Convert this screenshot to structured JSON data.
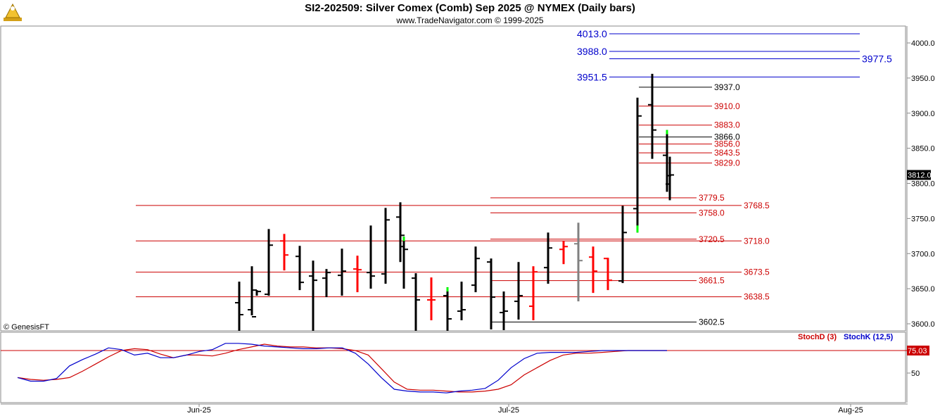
{
  "header": {
    "title": "SI2-202509:  Silver Comex (Comb) Sep 2025 @ NYMEX  (Daily bars)",
    "subtitle": "www.TradeNavigator.com © 1999-2025"
  },
  "copyright": "© GenesisFT",
  "colors": {
    "bar_up": "#000000",
    "bar_down": "#ff0000",
    "bar_green": "#00ff00",
    "bar_gray": "#808080",
    "blue_level": "#0000cc",
    "red_level": "#cc0000",
    "black_level": "#000000",
    "stochD": "#cc0000",
    "stochK": "#0000cc",
    "price_tag_bg": "#000000"
  },
  "chart_data": [
    {
      "type": "ohlc",
      "title": "SI2-202509:  Silver Comex (Comb) Sep 2025 @ NYMEX  (Daily bars)",
      "ylim": [
        3580,
        4030
      ],
      "y_ticks": [
        3600.0,
        3650.0,
        3700.0,
        3750.0,
        3800.0,
        3850.0,
        3900.0,
        3950.0,
        4000.0
      ],
      "y_tick_labels": [
        "3600.0",
        "3650.0",
        "3700.0",
        "3750.0",
        "3800.0",
        "3850.0",
        "3900.0",
        "3950.0",
        "4000.0"
      ],
      "x_labels": [
        "Jun-25",
        "Jul-25",
        "Aug-25"
      ],
      "last_price": "3812.0",
      "bars": [
        {
          "h": 3660,
          "l": 3590,
          "o": 3630,
          "c": 3613,
          "color": "black"
        },
        {
          "h": 3682,
          "l": 3612,
          "o": 3620,
          "c": 3610,
          "color": "black"
        },
        {
          "h": 3648,
          "l": 3640,
          "o": 3648,
          "c": 3646,
          "color": "black"
        },
        {
          "h": 3735,
          "l": 3640,
          "o": 3642,
          "c": 3712,
          "color": "black"
        },
        {
          "h": 3728,
          "l": 3676,
          "o": 3718,
          "c": 3698,
          "color": "red"
        },
        {
          "h": 3711,
          "l": 3648,
          "o": 3696,
          "c": 3659,
          "color": "black"
        },
        {
          "h": 3690,
          "l": 3590,
          "o": 3668,
          "c": 3662,
          "color": "black"
        },
        {
          "h": 3678,
          "l": 3638,
          "o": 3665,
          "c": 3673,
          "color": "black"
        },
        {
          "h": 3707,
          "l": 3640,
          "o": 3669,
          "c": 3675,
          "color": "black"
        },
        {
          "h": 3697,
          "l": 3645,
          "o": 3678,
          "c": 3677,
          "color": "red"
        },
        {
          "h": 3740,
          "l": 3650,
          "o": 3673,
          "c": 3668,
          "color": "black"
        },
        {
          "h": 3765,
          "l": 3657,
          "o": 3671,
          "c": 3748,
          "color": "black"
        },
        {
          "h": 3773,
          "l": 3688,
          "o": 3752,
          "c": 3726,
          "color": "black"
        },
        {
          "h": 3724,
          "l": 3650,
          "o": 3710,
          "c": 3706,
          "color": "black",
          "top_color": "green"
        },
        {
          "h": 3672,
          "l": 3590,
          "o": 3665,
          "c": 3634,
          "color": "black"
        },
        {
          "h": 3666,
          "l": 3605,
          "o": 3634,
          "c": 3634,
          "color": "red"
        },
        {
          "h": 3652,
          "l": 3590,
          "o": 3640,
          "c": 3607,
          "color": "black",
          "top_color": "green"
        },
        {
          "h": 3660,
          "l": 3605,
          "o": 3618,
          "c": 3620,
          "color": "black"
        },
        {
          "h": 3710,
          "l": 3645,
          "o": 3655,
          "c": 3693,
          "color": "black"
        },
        {
          "h": 3693,
          "l": 3592,
          "o": 3688,
          "c": 3638,
          "color": "black"
        },
        {
          "h": 3646,
          "l": 3591,
          "o": 3616,
          "c": 3618,
          "color": "black"
        },
        {
          "h": 3688,
          "l": 3606,
          "o": 3632,
          "c": 3640,
          "color": "black"
        },
        {
          "h": 3682,
          "l": 3605,
          "o": 3625,
          "c": 3674,
          "color": "red"
        },
        {
          "h": 3730,
          "l": 3657,
          "o": 3680,
          "c": 3708,
          "color": "black"
        },
        {
          "h": 3718,
          "l": 3685,
          "o": 3706,
          "c": 3710,
          "color": "red"
        },
        {
          "h": 3744,
          "l": 3632,
          "o": 3714,
          "c": 3690,
          "color": "gray"
        },
        {
          "h": 3710,
          "l": 3644,
          "o": 3695,
          "c": 3675,
          "color": "red"
        },
        {
          "h": 3694,
          "l": 3648,
          "o": 3693,
          "c": 3662,
          "color": "red"
        },
        {
          "h": 3768,
          "l": 3658,
          "o": 3661,
          "c": 3730,
          "color": "black"
        },
        {
          "h": 3922,
          "l": 3730,
          "o": 3764,
          "c": 3896,
          "color": "black",
          "bottom_color": "green"
        },
        {
          "h": 3956,
          "l": 3835,
          "o": 3912,
          "c": 3876,
          "color": "black"
        },
        {
          "h": 3876,
          "l": 3788,
          "o": 3840,
          "c": 3811,
          "color": "black",
          "top_color": "green"
        },
        {
          "h": 3838,
          "l": 3776,
          "o": 3799,
          "c": 3812,
          "color": "black"
        }
      ]
    },
    {
      "type": "hline_levels",
      "levels": [
        {
          "value": 4013.0,
          "label": "4013.0",
          "color": "blue"
        },
        {
          "value": 3988.0,
          "label": "3988.0",
          "color": "blue"
        },
        {
          "value": 3977.5,
          "label": "3977.5",
          "color": "blue"
        },
        {
          "value": 3951.5,
          "label": "3951.5",
          "color": "blue"
        },
        {
          "value": 3937.0,
          "label": "3937.0",
          "color": "black"
        },
        {
          "value": 3910.0,
          "label": "3910.0",
          "color": "red"
        },
        {
          "value": 3883.0,
          "label": "3883.0",
          "color": "red"
        },
        {
          "value": 3866.0,
          "label": "3866.0",
          "color": "black"
        },
        {
          "value": 3856.0,
          "label": "3856.0",
          "color": "red"
        },
        {
          "value": 3843.5,
          "label": "3843.5",
          "color": "red"
        },
        {
          "value": 3829.0,
          "label": "3829.0",
          "color": "red"
        },
        {
          "value": 3779.5,
          "label": "3779.5",
          "color": "red"
        },
        {
          "value": 3768.5,
          "label": "3768.5",
          "color": "red"
        },
        {
          "value": 3758.0,
          "label": "3758.0",
          "color": "red"
        },
        {
          "value": 3720.5,
          "label": "3720.5",
          "color": "red"
        },
        {
          "value": 3718.0,
          "label": "3718.0",
          "color": "red"
        },
        {
          "value": 3673.5,
          "label": "3673.5",
          "color": "red"
        },
        {
          "value": 3661.5,
          "label": "3661.5",
          "color": "red"
        },
        {
          "value": 3638.5,
          "label": "3638.5",
          "color": "red"
        },
        {
          "value": 3602.5,
          "label": "3602.5",
          "color": "black"
        }
      ]
    },
    {
      "type": "line",
      "title": "",
      "series": [
        {
          "name": "StochD (3)",
          "values": [
            45,
            43,
            42,
            43,
            45,
            52,
            60,
            68,
            75,
            77,
            76,
            71,
            67,
            70,
            70,
            69,
            72,
            76,
            79,
            82,
            80,
            79,
            79,
            78,
            78,
            77,
            75,
            70,
            55,
            40,
            32,
            31,
            31,
            30,
            29,
            29,
            30,
            32,
            37,
            48,
            56,
            64,
            70,
            72,
            72,
            73,
            74,
            75,
            75,
            75,
            75
          ]
        },
        {
          "name": "StochK (12,5)",
          "values": [
            45,
            41,
            41,
            44,
            58,
            65,
            71,
            78,
            76,
            70,
            72,
            67,
            67,
            70,
            74,
            76,
            83,
            83,
            82,
            80,
            79,
            78,
            77,
            77,
            78,
            78,
            72,
            60,
            45,
            32,
            30,
            29,
            29,
            28,
            30,
            31,
            33,
            42,
            56,
            66,
            72,
            73,
            73,
            73,
            74,
            75,
            75,
            75,
            75,
            75,
            75
          ]
        }
      ],
      "legend": [
        "StochD (3)",
        "StochK (12,5)"
      ],
      "y_tick_labels": [
        "50"
      ],
      "reference_label": "75.03"
    }
  ]
}
